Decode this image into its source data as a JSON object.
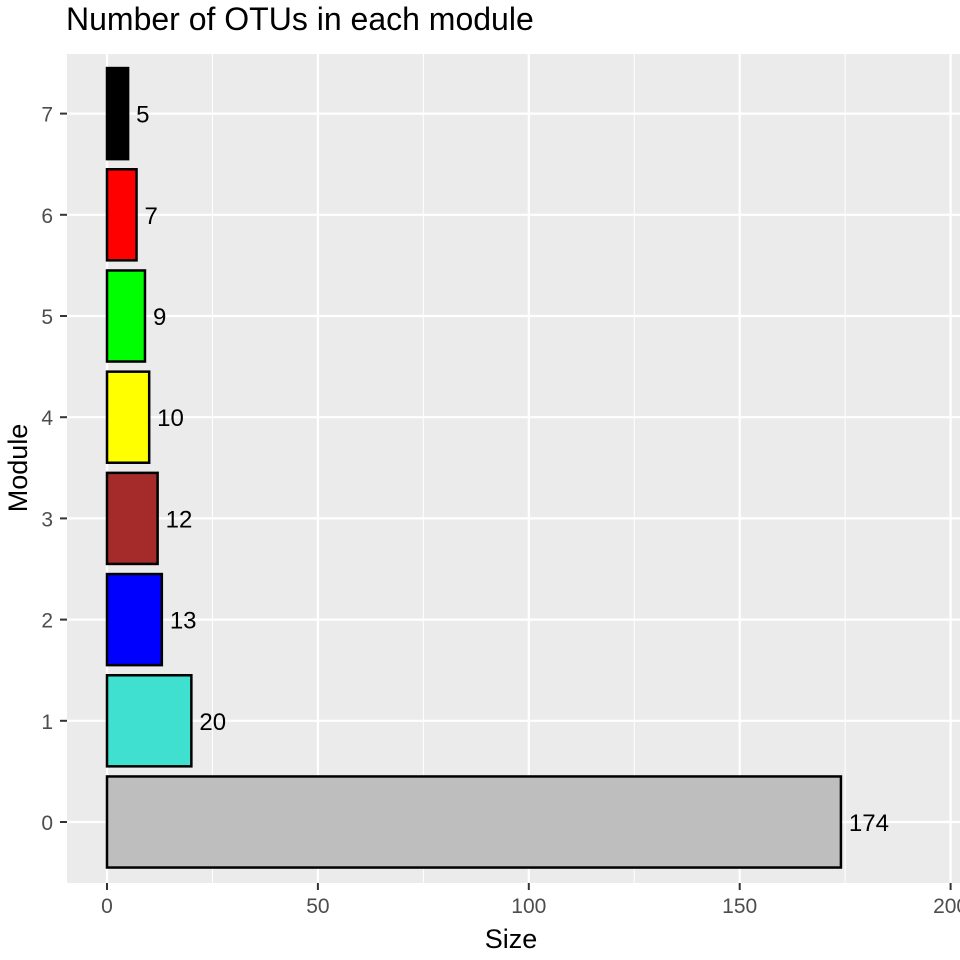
{
  "chart_data": {
    "type": "bar",
    "orientation": "horizontal",
    "title": "Number of OTUs in each module",
    "xlabel": "Size",
    "ylabel": "Module",
    "categories": [
      "0",
      "1",
      "2",
      "3",
      "4",
      "5",
      "6",
      "7"
    ],
    "values": [
      174,
      20,
      13,
      12,
      10,
      9,
      7,
      5
    ],
    "data_labels": [
      "174",
      "20",
      "13",
      "12",
      "10",
      "9",
      "7",
      "5"
    ],
    "bar_colors": [
      "#bebebe",
      "#40e0d0",
      "#0000ff",
      "#a52a2a",
      "#ffff00",
      "#00ff00",
      "#ff0000",
      "#000000"
    ],
    "bar_outline": "#000000",
    "xlim": [
      -9,
      200
    ],
    "x_ticks": [
      0,
      50,
      100,
      150,
      200
    ],
    "x_tick_labels": [
      "0",
      "50",
      "100",
      "150",
      "200"
    ],
    "grid": true,
    "panel_background": "#ebebeb",
    "legend": "none"
  }
}
